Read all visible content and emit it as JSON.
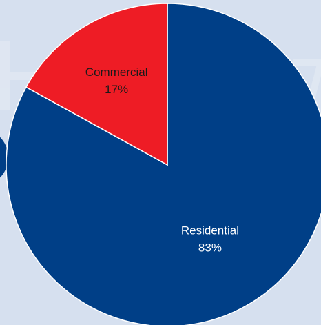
{
  "chart_data": {
    "type": "pie",
    "title": "",
    "start_angle_deg": 0,
    "direction": "clockwise",
    "slices": [
      {
        "label": "Residential",
        "value": 83,
        "percent_label": "83%",
        "color": "#003f87",
        "label_color": "#ffffff"
      },
      {
        "label": "Commercial",
        "value": 17,
        "percent_label": "17%",
        "color": "#ee1c25",
        "label_color": "#1a1a1a"
      }
    ]
  },
  "background_color": "#d6e0ef",
  "slice_border_color": "#ffffff",
  "left_accent_color": "#003f87"
}
